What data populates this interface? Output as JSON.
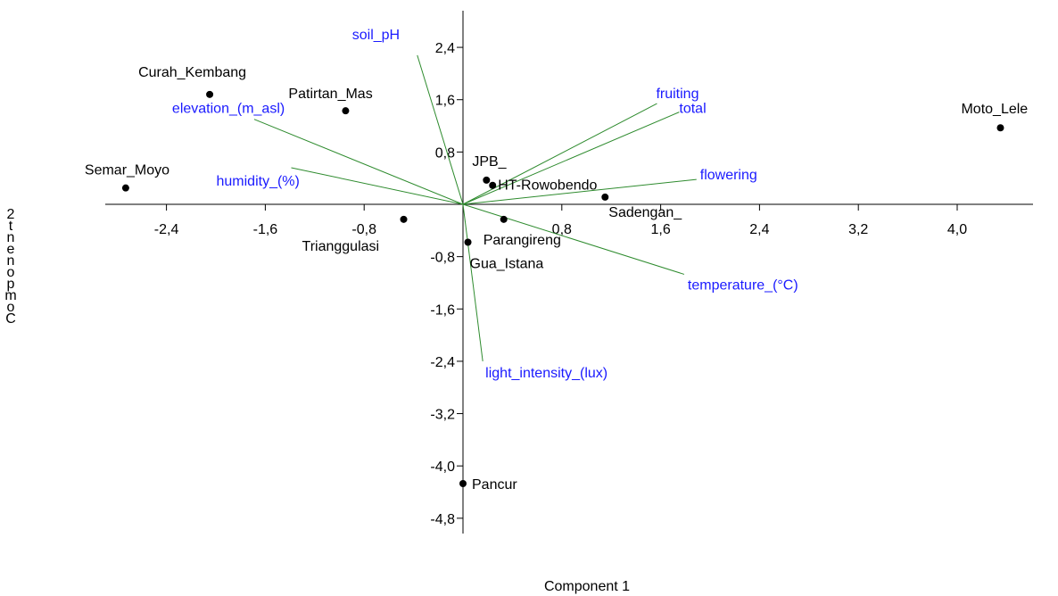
{
  "chart_data": {
    "type": "scatter",
    "subtype": "pca-biplot",
    "xlabel": "Component 1",
    "ylabel_chars": [
      "2",
      "t",
      "n",
      "e",
      "n",
      "o",
      "p",
      "m",
      "o",
      "C"
    ],
    "xlim": [
      -3.0,
      4.9
    ],
    "ylim": [
      -5.0,
      3.0
    ],
    "x_ticks": [
      "-2,4",
      "-1,6",
      "-0,8",
      "0,8",
      "1,6",
      "2,4",
      "3,2",
      "4,0"
    ],
    "x_tick_values": [
      -2.4,
      -1.6,
      -0.8,
      0.8,
      1.6,
      2.4,
      3.2,
      4.0
    ],
    "y_ticks": [
      "2,4",
      "1,6",
      "0,8",
      "-0,8",
      "-1,6",
      "-2,4",
      "-3,2",
      "-4,0",
      "-4,8"
    ],
    "y_tick_values": [
      2.4,
      1.6,
      0.8,
      -0.8,
      -1.6,
      -2.4,
      -3.2,
      -4.0,
      -4.8
    ],
    "grid": false,
    "colors": {
      "points": "#000000",
      "vectors": "#2e8b2e",
      "vector_labels": "#1a1aff"
    },
    "sites": [
      {
        "name": "Curah_Kembang",
        "x": -2.05,
        "y": 1.68
      },
      {
        "name": "Patirtan_Mas",
        "x": -0.95,
        "y": 1.43
      },
      {
        "name": "Semar_Moyo",
        "x": -2.73,
        "y": 0.25
      },
      {
        "name": "JPB_",
        "x": 0.19,
        "y": 0.37
      },
      {
        "name": "HT-Rowobendo",
        "x": 0.24,
        "y": 0.29
      },
      {
        "name": "Sadengan_",
        "x": 1.15,
        "y": 0.11
      },
      {
        "name": "Moto_Lele",
        "x": 4.35,
        "y": 1.17
      },
      {
        "name": "Trianggulasi",
        "x": -0.48,
        "y": -0.23
      },
      {
        "name": "Parangireng",
        "x": 0.33,
        "y": -0.23
      },
      {
        "name": "Gua_Istana",
        "x": 0.04,
        "y": -0.58
      },
      {
        "name": "Pancur",
        "x": 0.0,
        "y": -4.27
      }
    ],
    "vectors": [
      {
        "name": "soil_pH",
        "x": -0.37,
        "y": 2.28
      },
      {
        "name": "fruiting",
        "x": 1.57,
        "y": 1.54
      },
      {
        "name": "total",
        "x": 1.75,
        "y": 1.41
      },
      {
        "name": "elevation_(m_asl)",
        "x": -1.69,
        "y": 1.3
      },
      {
        "name": "humidity_(%)",
        "x": -1.39,
        "y": 0.56
      },
      {
        "name": "flowering",
        "x": 1.89,
        "y": 0.38
      },
      {
        "name": "temperature_(°C)",
        "x": 1.79,
        "y": -1.07
      },
      {
        "name": "light_intensity_(lux)",
        "x": 0.16,
        "y": -2.4
      }
    ]
  }
}
